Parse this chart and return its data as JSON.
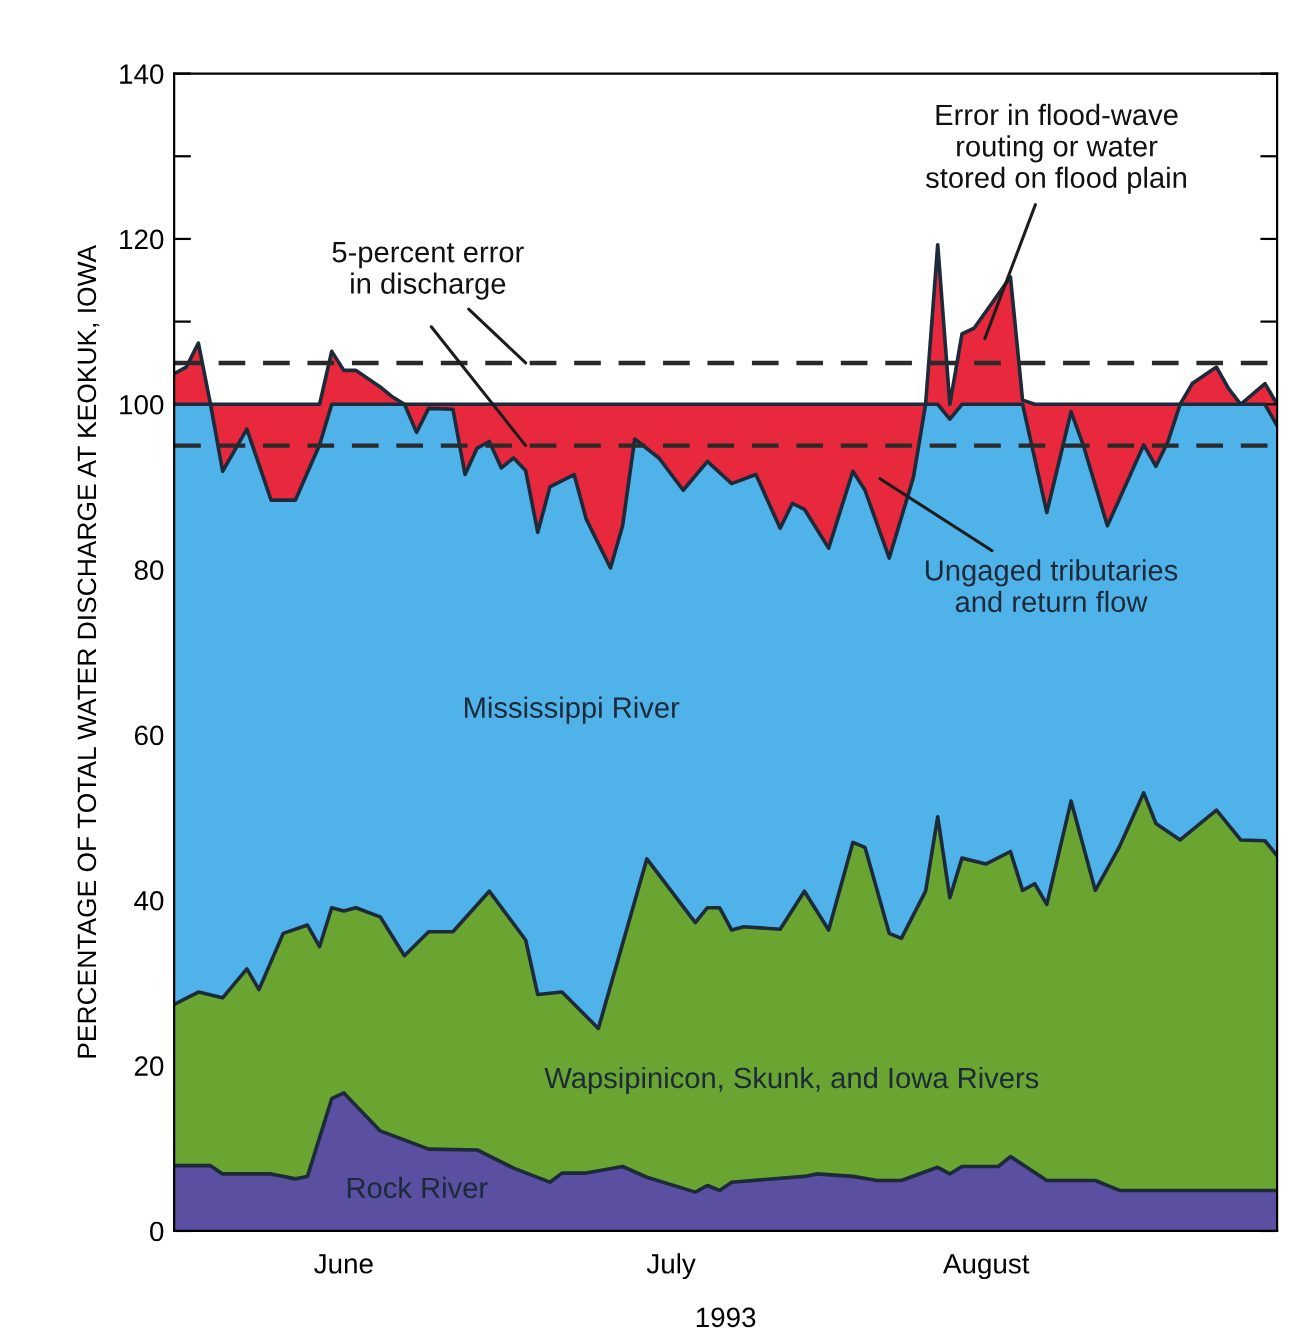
{
  "chart_data": {
    "type": "area",
    "xlabel": "1993",
    "ylabel": "PERCENTAGE OF TOTAL WATER DISCHARGE AT KEOKUK, IOWA",
    "xlim": [
      "1993-06-01",
      "1993-08-31"
    ],
    "xticks": [
      {
        "value": "1993-06-15",
        "label": "June"
      },
      {
        "value": "1993-07-01",
        "label": null
      },
      {
        "value": "1993-07-12",
        "label": "July"
      },
      {
        "value": "1993-08-01",
        "label": null
      },
      {
        "value": "1993-08-07",
        "label": "August"
      }
    ],
    "ylim": [
      0,
      140
    ],
    "yticks": [
      0,
      {
        "value": 10,
        "label": null
      },
      20,
      {
        "value": 30,
        "label": null
      },
      40,
      {
        "value": 50,
        "label": null
      },
      60,
      {
        "value": 70,
        "label": null
      },
      80,
      {
        "value": 90,
        "label": null
      },
      100,
      {
        "value": 110,
        "label": null
      },
      120,
      {
        "value": 130,
        "label": null
      },
      140
    ],
    "series": [
      {
        "color": "#e8283c",
        "x": [
          "1993-06-01",
          "1993-06-02",
          "1993-06-03",
          "1993-06-04",
          "1993-06-13",
          "1993-06-14",
          "1993-06-15",
          "1993-06-16",
          "1993-06-18",
          "1993-06-19",
          "1993-06-20",
          "1993-08-01",
          "1993-08-02",
          "1993-08-03",
          "1993-08-04",
          "1993-08-05",
          "1993-08-06",
          "1993-08-09",
          "1993-08-10",
          "1993-08-11",
          "1993-08-23",
          "1993-08-24",
          "1993-08-26",
          "1993-08-27",
          "1993-08-28",
          "1993-08-30",
          "1993-08-31"
        ],
        "values": [
          103.7,
          104.5,
          107.4,
          100,
          100,
          106.4,
          104.1,
          104.1,
          102.1,
          100.9,
          100,
          100,
          100,
          119.3,
          100,
          108.5,
          109.2,
          115.4,
          100.5,
          100,
          100,
          102.5,
          104.5,
          101.9,
          100,
          102.5,
          100
        ]
      },
      {
        "name": "Mississippi River",
        "color": "#4fb3ea",
        "x": [
          "1993-06-01",
          "1993-06-04",
          "1993-06-05",
          "1993-06-07",
          "1993-06-09",
          "1993-06-11",
          "1993-06-13",
          "1993-06-14",
          "1993-06-20",
          "1993-06-21",
          "1993-06-22",
          "1993-06-24",
          "1993-06-25",
          "1993-06-26",
          "1993-06-27",
          "1993-06-28",
          "1993-06-29",
          "1993-06-30",
          "1993-07-01",
          "1993-07-02",
          "1993-07-04",
          "1993-07-05",
          "1993-07-07",
          "1993-07-08",
          "1993-07-09",
          "1993-07-11",
          "1993-07-13",
          "1993-07-15",
          "1993-07-17",
          "1993-07-19",
          "1993-07-21",
          "1993-07-22",
          "1993-07-23",
          "1993-07-25",
          "1993-07-27",
          "1993-07-28",
          "1993-07-30",
          "1993-08-01",
          "1993-08-02",
          "1993-08-03",
          "1993-08-04",
          "1993-08-05",
          "1993-08-10",
          "1993-08-12",
          "1993-08-14",
          "1993-08-15",
          "1993-08-17",
          "1993-08-20",
          "1993-08-21",
          "1993-08-22",
          "1993-08-23",
          "1993-08-30",
          "1993-08-31"
        ],
        "values": [
          100,
          100,
          91.9,
          97.0,
          88.4,
          88.4,
          95.1,
          100,
          100,
          96.6,
          99.5,
          99.4,
          91.5,
          94.7,
          95.5,
          92.3,
          93.5,
          92.0,
          84.5,
          90.0,
          91.5,
          86.1,
          80.2,
          85.3,
          95.8,
          93.5,
          89.6,
          93.1,
          90.4,
          91.5,
          85.0,
          88.0,
          87.3,
          82.6,
          91.9,
          89.6,
          81.4,
          91.2,
          100,
          100,
          98.2,
          100,
          100,
          86.9,
          99.1,
          95.1,
          85.3,
          95.1,
          92.5,
          95.5,
          100,
          100,
          97.4
        ]
      },
      {
        "name": "Wapsipinicon, Skunk, and Iowa Rivers",
        "color": "#6aa531",
        "x": [
          "1993-06-01",
          "1993-06-03",
          "1993-06-05",
          "1993-06-07",
          "1993-06-08",
          "1993-06-10",
          "1993-06-12",
          "1993-06-13",
          "1993-06-14",
          "1993-06-15",
          "1993-06-16",
          "1993-06-18",
          "1993-06-20",
          "1993-06-22",
          "1993-06-24",
          "1993-06-27",
          "1993-06-30",
          "1993-07-01",
          "1993-07-03",
          "1993-07-06",
          "1993-07-10",
          "1993-07-14",
          "1993-07-15",
          "1993-07-16",
          "1993-07-17",
          "1993-07-18",
          "1993-07-21",
          "1993-07-23",
          "1993-07-25",
          "1993-07-27",
          "1993-07-28",
          "1993-07-30",
          "1993-07-31",
          "1993-08-02",
          "1993-08-03",
          "1993-08-04",
          "1993-08-05",
          "1993-08-07",
          "1993-08-09",
          "1993-08-10",
          "1993-08-11",
          "1993-08-12",
          "1993-08-14",
          "1993-08-16",
          "1993-08-18",
          "1993-08-20",
          "1993-08-21",
          "1993-08-23",
          "1993-08-26",
          "1993-08-28",
          "1993-08-30",
          "1993-08-31"
        ],
        "values": [
          27.4,
          28.9,
          28.2,
          31.7,
          29.2,
          36.0,
          37.0,
          34.4,
          39.1,
          38.7,
          39.1,
          38.0,
          33.3,
          36.2,
          36.2,
          41.1,
          35.2,
          28.6,
          28.9,
          24.5,
          45.0,
          37.3,
          39.1,
          39.1,
          36.4,
          36.8,
          36.5,
          41.1,
          36.4,
          47.0,
          46.4,
          36.0,
          35.4,
          41.1,
          50.1,
          40.3,
          45.1,
          44.4,
          45.9,
          41.2,
          42.0,
          39.5,
          52.0,
          41.2,
          46.5,
          53.0,
          49.3,
          47.3,
          50.9,
          47.3,
          47.2,
          45.4
        ]
      },
      {
        "name": "Rock River",
        "color": "#5a4fa0",
        "x": [
          "1993-06-01",
          "1993-06-04",
          "1993-06-05",
          "1993-06-09",
          "1993-06-11",
          "1993-06-12",
          "1993-06-14",
          "1993-06-15",
          "1993-06-18",
          "1993-06-22",
          "1993-06-26",
          "1993-06-29",
          "1993-07-02",
          "1993-07-03",
          "1993-07-05",
          "1993-07-08",
          "1993-07-10",
          "1993-07-14",
          "1993-07-15",
          "1993-07-16",
          "1993-07-17",
          "1993-07-23",
          "1993-07-24",
          "1993-07-27",
          "1993-07-29",
          "1993-07-31",
          "1993-08-03",
          "1993-08-04",
          "1993-08-05",
          "1993-08-08",
          "1993-08-09",
          "1993-08-12",
          "1993-08-16",
          "1993-08-18",
          "1993-08-31"
        ],
        "values": [
          7.9,
          7.9,
          6.9,
          6.9,
          6.3,
          6.6,
          16.0,
          16.7,
          12.1,
          9.9,
          9.8,
          7.6,
          5.9,
          7.0,
          7.0,
          7.8,
          6.5,
          4.7,
          5.5,
          4.9,
          5.9,
          6.6,
          6.9,
          6.6,
          6.1,
          6.1,
          7.7,
          6.9,
          7.8,
          7.8,
          9.0,
          6.1,
          6.1,
          4.9,
          4.9
        ]
      }
    ],
    "ref_lines": [
      {
        "axis": "y",
        "value": 105,
        "line_style": "dashed"
      },
      {
        "axis": "y",
        "value": 95,
        "line_style": "dashed"
      }
    ],
    "annotations": [
      {
        "text": "5-percent error\nin discharge",
        "x": "1993-06-30",
        "y": 105
      },
      "Error in flood-wave\nrouting or water\nstored on flood plain",
      "Ungaged tributaries\nand return flow"
    ]
  }
}
